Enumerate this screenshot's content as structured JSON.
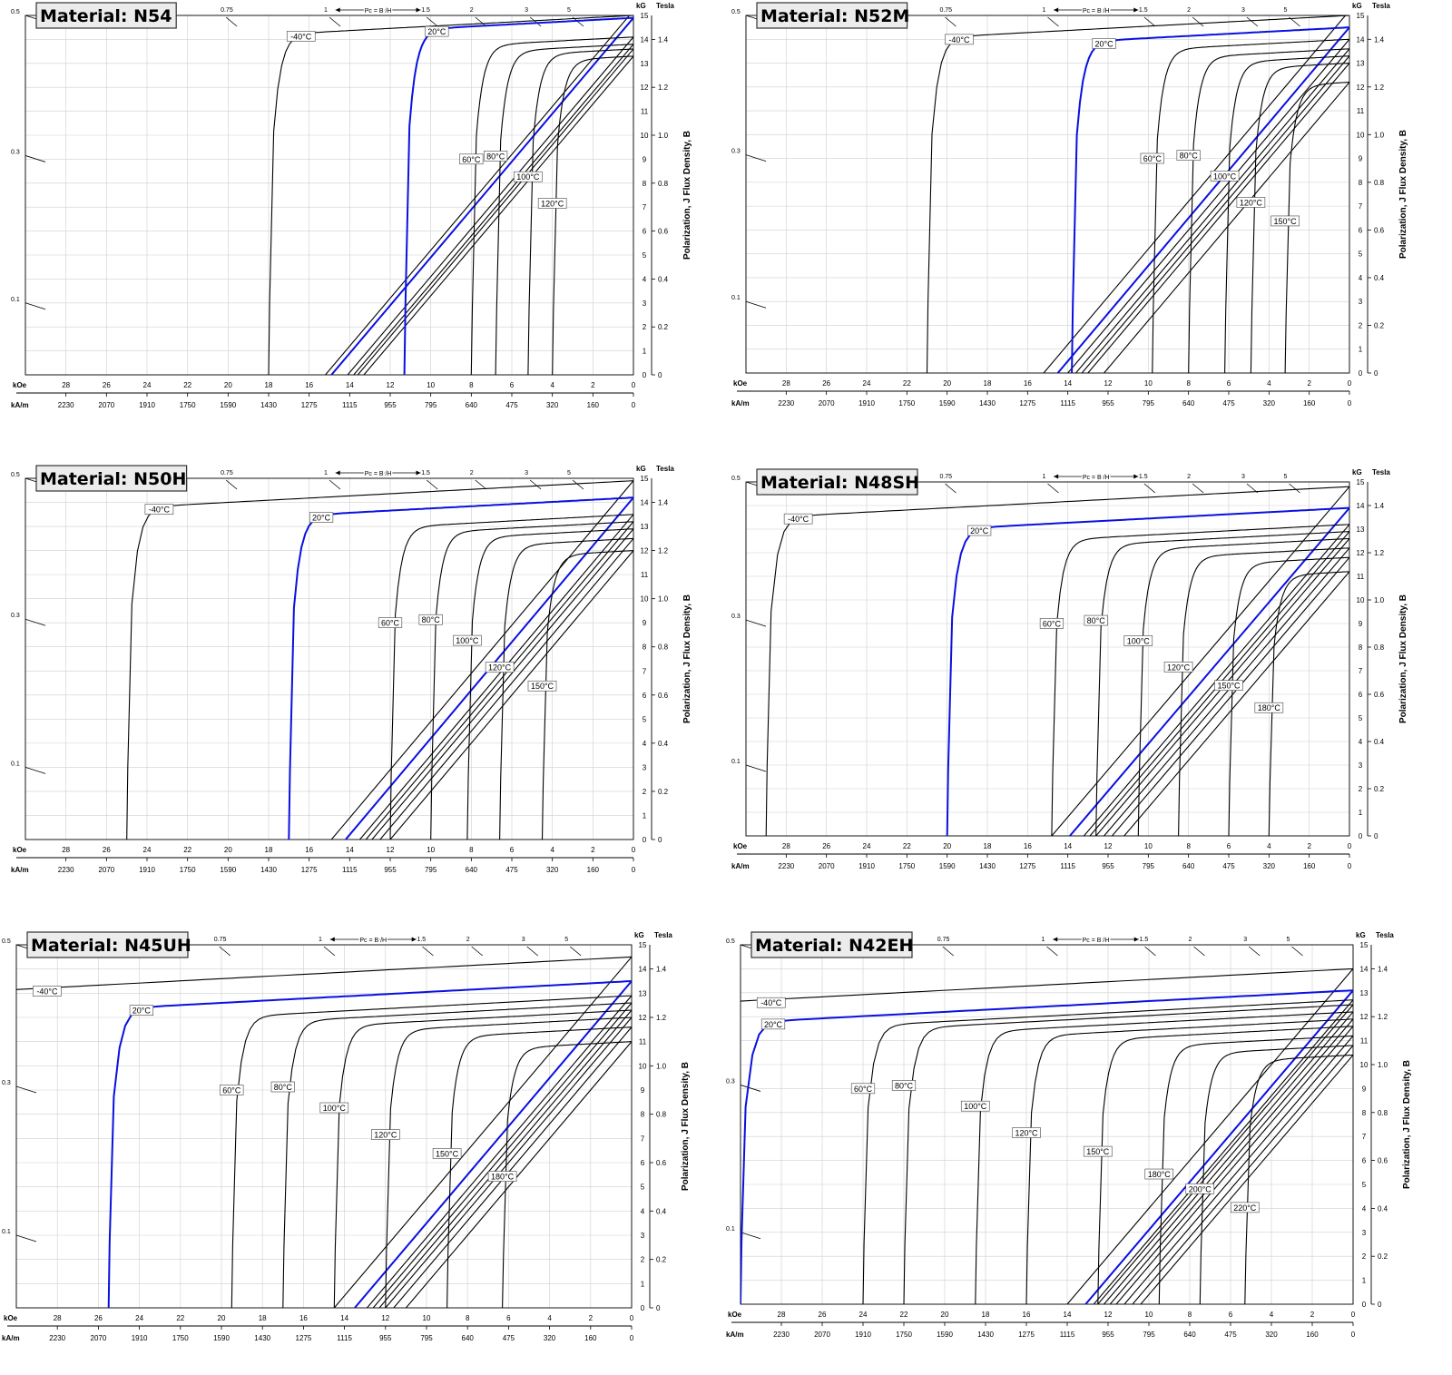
{
  "chart_data": [
    {
      "type": "line",
      "title": "Material: N54",
      "hci": {
        "-40": null,
        "20": 11.3,
        "60": 8,
        "80": 6.8,
        "100": 5.2,
        "120": 4,
        "150": null,
        "180": null
      },
      "curves": [
        {
          "name": "-40°C",
          "jr_kG": 15.0,
          "hci_kOe": 18.0,
          "label": true
        },
        {
          "name": "20°C",
          "jr_kG": 14.9,
          "hci_kOe": 11.3,
          "label": true,
          "highlight": true
        },
        {
          "name": "60°C",
          "jr_kG": 14.1,
          "hci_kOe": 8.0,
          "label": true
        },
        {
          "name": "80°C",
          "jr_kG": 13.8,
          "hci_kOe": 6.8,
          "label": true
        },
        {
          "name": "100°C",
          "jr_kG": 13.6,
          "hci_kOe": 5.2,
          "label": true
        },
        {
          "name": "120°C",
          "jr_kG": 13.3,
          "hci_kOe": 4.0,
          "label": true
        }
      ],
      "b_lines": [
        {
          "name": "-40°C",
          "br_kG": 15.2
        },
        {
          "name": "20°C",
          "br_kG": 14.9,
          "highlight": true
        },
        {
          "name": "60°C",
          "br_kG": 14.1
        },
        {
          "name": "80°C",
          "br_kG": 13.8
        },
        {
          "name": "100°C",
          "br_kG": 13.6
        },
        {
          "name": "120°C",
          "br_kG": 13.3
        }
      ],
      "xlabel_koe": "kOe",
      "xlabel_kam": "kA/m",
      "y_left": "kG",
      "y_right": "Tesla",
      "ylabel": "Polarization,  J    Flux Density,  B",
      "x_ticks_koe": [
        "28",
        "26",
        "24",
        "22",
        "20",
        "18",
        "16",
        "14",
        "12",
        "10",
        "8",
        "6",
        "4",
        "2",
        "0"
      ],
      "x_ticks_kam": [
        "2230",
        "2070",
        "1910",
        "1750",
        "1590",
        "1430",
        "1275",
        "1115",
        "955",
        "795",
        "640",
        "475",
        "320",
        "160",
        "0"
      ],
      "y_ticks_kg": [
        "0",
        "1",
        "2",
        "3",
        "4",
        "5",
        "6",
        "7",
        "8",
        "9",
        "10",
        "11",
        "12",
        "13",
        "14",
        "15"
      ],
      "y_ticks_t": [
        "0",
        "0.2",
        "0.4",
        "0.6",
        "0.8",
        "1.0",
        "1.2",
        "1.4"
      ],
      "pc_ticks": [
        "0.75",
        "1",
        "1.5",
        "2",
        "3",
        "5"
      ],
      "pc_left": [
        "0.5",
        "0.3",
        "0.1"
      ],
      "pc_label": "Pc = B /H",
      "xlim_koe": [
        30,
        0
      ],
      "ylim_kg": [
        0,
        15
      ]
    },
    {
      "type": "line",
      "title": "Material: N52M",
      "curves": [
        {
          "name": "-40°C",
          "jr_kG": 15.0,
          "hci_kOe": 21.0,
          "label": true
        },
        {
          "name": "20°C",
          "jr_kG": 14.5,
          "hci_kOe": 13.8,
          "label": true,
          "highlight": true
        },
        {
          "name": "60°C",
          "jr_kG": 14.0,
          "hci_kOe": 9.8,
          "label": true
        },
        {
          "name": "80°C",
          "jr_kG": 13.6,
          "hci_kOe": 8.0,
          "label": true
        },
        {
          "name": "100°C",
          "jr_kG": 13.3,
          "hci_kOe": 6.2,
          "label": true
        },
        {
          "name": "120°C",
          "jr_kG": 13.0,
          "hci_kOe": 4.9,
          "label": true
        },
        {
          "name": "150°C",
          "jr_kG": 12.2,
          "hci_kOe": 3.2,
          "label": true
        }
      ],
      "b_lines": [
        {
          "name": "-40°C",
          "br_kG": 15.2
        },
        {
          "name": "20°C",
          "br_kG": 14.5,
          "highlight": true
        },
        {
          "name": "60°C",
          "br_kG": 14.0
        },
        {
          "name": "80°C",
          "br_kG": 13.6
        },
        {
          "name": "100°C",
          "br_kG": 13.3
        },
        {
          "name": "120°C",
          "br_kG": 13.0
        },
        {
          "name": "150°C",
          "br_kG": 12.2
        }
      ],
      "xlabel_koe": "kOe",
      "xlabel_kam": "kA/m",
      "y_left": "kG",
      "y_right": "Tesla",
      "ylabel": "Polarization,  J    Flux Density,  B",
      "x_ticks_koe": [
        "28",
        "26",
        "24",
        "22",
        "20",
        "18",
        "16",
        "14",
        "12",
        "10",
        "8",
        "6",
        "4",
        "2",
        "0"
      ],
      "x_ticks_kam": [
        "2230",
        "2070",
        "1910",
        "1750",
        "1590",
        "1430",
        "1275",
        "1115",
        "955",
        "795",
        "640",
        "475",
        "320",
        "160",
        "0"
      ],
      "y_ticks_kg": [
        "0",
        "1",
        "2",
        "3",
        "4",
        "5",
        "6",
        "7",
        "8",
        "9",
        "10",
        "11",
        "12",
        "13",
        "14",
        "15"
      ],
      "y_ticks_t": [
        "0",
        "0.2",
        "0.4",
        "0.6",
        "0.8",
        "1.0",
        "1.2",
        "1.4"
      ],
      "pc_ticks": [
        "0.75",
        "1",
        "1.5",
        "2",
        "3",
        "5"
      ],
      "pc_left": [
        "0.5",
        "0.3",
        "0.1"
      ],
      "pc_label": "Pc = B /H",
      "xlim_koe": [
        30,
        0
      ],
      "ylim_kg": [
        0,
        15
      ]
    },
    {
      "type": "line",
      "title": "Material: N50H",
      "curves": [
        {
          "name": "-40°C",
          "jr_kG": 14.9,
          "hci_kOe": 25.0,
          "label": true
        },
        {
          "name": "20°C",
          "jr_kG": 14.2,
          "hci_kOe": 17.0,
          "label": true,
          "highlight": true
        },
        {
          "name": "60°C",
          "jr_kG": 13.5,
          "hci_kOe": 12.0,
          "label": true
        },
        {
          "name": "80°C",
          "jr_kG": 13.2,
          "hci_kOe": 10.0,
          "label": true
        },
        {
          "name": "100°C",
          "jr_kG": 12.9,
          "hci_kOe": 8.2,
          "label": true
        },
        {
          "name": "120°C",
          "jr_kG": 12.5,
          "hci_kOe": 6.6,
          "label": true
        },
        {
          "name": "150°C",
          "jr_kG": 12.0,
          "hci_kOe": 4.5,
          "label": true
        }
      ],
      "b_lines": [
        {
          "name": "-40°C",
          "br_kG": 14.9
        },
        {
          "name": "20°C",
          "br_kG": 14.2,
          "highlight": true
        },
        {
          "name": "60°C",
          "br_kG": 13.5
        },
        {
          "name": "80°C",
          "br_kG": 13.2
        },
        {
          "name": "100°C",
          "br_kG": 12.9
        },
        {
          "name": "120°C",
          "br_kG": 12.5
        },
        {
          "name": "150°C",
          "br_kG": 12.0
        }
      ],
      "xlabel_koe": "kOe",
      "xlabel_kam": "kA/m",
      "y_left": "kG",
      "y_right": "Tesla",
      "ylabel": "Polarization,  J    Flux Density,  B",
      "x_ticks_koe": [
        "28",
        "26",
        "24",
        "22",
        "20",
        "18",
        "16",
        "14",
        "12",
        "10",
        "8",
        "6",
        "4",
        "2",
        "0"
      ],
      "x_ticks_kam": [
        "2230",
        "2070",
        "1910",
        "1750",
        "1590",
        "1430",
        "1275",
        "1115",
        "955",
        "795",
        "640",
        "475",
        "320",
        "160",
        "0"
      ],
      "y_ticks_kg": [
        "0",
        "1",
        "2",
        "3",
        "4",
        "5",
        "6",
        "7",
        "8",
        "9",
        "10",
        "11",
        "12",
        "13",
        "14",
        "15"
      ],
      "y_ticks_t": [
        "0",
        "0.2",
        "0.4",
        "0.6",
        "0.8",
        "1.0",
        "1.2",
        "1.4"
      ],
      "pc_ticks": [
        "0.75",
        "1",
        "1.5",
        "2",
        "3",
        "5"
      ],
      "pc_left": [
        "0.5",
        "0.3",
        "0.1"
      ],
      "pc_label": "Pc = B /H",
      "xlim_koe": [
        30,
        0
      ],
      "ylim_kg": [
        0,
        15
      ]
    },
    {
      "type": "line",
      "title": "Material: N48SH",
      "curves": [
        {
          "name": "-40°C",
          "jr_kG": 14.8,
          "hci_kOe": 29.0,
          "label": true
        },
        {
          "name": "20°C",
          "jr_kG": 13.9,
          "hci_kOe": 20.0,
          "label": true,
          "highlight": true
        },
        {
          "name": "60°C",
          "jr_kG": 13.2,
          "hci_kOe": 14.8,
          "label": true
        },
        {
          "name": "80°C",
          "jr_kG": 12.9,
          "hci_kOe": 12.6,
          "label": true
        },
        {
          "name": "100°C",
          "jr_kG": 12.6,
          "hci_kOe": 10.5,
          "label": true
        },
        {
          "name": "120°C",
          "jr_kG": 12.2,
          "hci_kOe": 8.5,
          "label": true
        },
        {
          "name": "150°C",
          "jr_kG": 11.8,
          "hci_kOe": 6.0,
          "label": true
        },
        {
          "name": "180°C",
          "jr_kG": 11.2,
          "hci_kOe": 4.0,
          "label": true
        }
      ],
      "b_lines": [
        {
          "name": "-40°C",
          "br_kG": 14.8
        },
        {
          "name": "20°C",
          "br_kG": 13.9,
          "highlight": true
        },
        {
          "name": "60°C",
          "br_kG": 13.2
        },
        {
          "name": "80°C",
          "br_kG": 12.9
        },
        {
          "name": "100°C",
          "br_kG": 12.6
        },
        {
          "name": "120°C",
          "br_kG": 12.2
        },
        {
          "name": "150°C",
          "br_kG": 11.8
        },
        {
          "name": "180°C",
          "br_kG": 11.2
        }
      ],
      "xlabel_koe": "kOe",
      "xlabel_kam": "kA/m",
      "y_left": "kG",
      "y_right": "Tesla",
      "ylabel": "Polarization,  J    Flux Density,  B",
      "x_ticks_koe": [
        "28",
        "26",
        "24",
        "22",
        "20",
        "18",
        "16",
        "14",
        "12",
        "10",
        "8",
        "6",
        "4",
        "2",
        "0"
      ],
      "x_ticks_kam": [
        "2230",
        "2070",
        "1910",
        "1750",
        "1590",
        "1430",
        "1275",
        "1115",
        "955",
        "795",
        "640",
        "475",
        "320",
        "160",
        "0"
      ],
      "y_ticks_kg": [
        "0",
        "1",
        "2",
        "3",
        "4",
        "5",
        "6",
        "7",
        "8",
        "9",
        "10",
        "11",
        "12",
        "13",
        "14",
        "15"
      ],
      "y_ticks_t": [
        "0",
        "0.2",
        "0.4",
        "0.6",
        "0.8",
        "1.0",
        "1.2",
        "1.4"
      ],
      "pc_ticks": [
        "0.75",
        "1",
        "1.5",
        "2",
        "3",
        "5"
      ],
      "pc_left": [
        "0.5",
        "0.3",
        "0.1"
      ],
      "pc_label": "Pc = B /H",
      "xlim_koe": [
        30,
        0
      ],
      "ylim_kg": [
        0,
        15
      ]
    },
    {
      "type": "line",
      "title": "Material: N45UH",
      "curves": [
        {
          "name": "-40°C",
          "jr_kG": 14.5,
          "hci_kOe": 40.0,
          "label": true
        },
        {
          "name": "20°C",
          "jr_kG": 13.5,
          "hci_kOe": 25.5,
          "label": true,
          "highlight": true
        },
        {
          "name": "60°C",
          "jr_kG": 12.9,
          "hci_kOe": 19.5,
          "label": true
        },
        {
          "name": "80°C",
          "jr_kG": 12.6,
          "hci_kOe": 17.0,
          "label": true
        },
        {
          "name": "100°C",
          "jr_kG": 12.3,
          "hci_kOe": 14.5,
          "label": true
        },
        {
          "name": "120°C",
          "jr_kG": 12.0,
          "hci_kOe": 12.0,
          "label": true
        },
        {
          "name": "150°C",
          "jr_kG": 11.6,
          "hci_kOe": 9.0,
          "label": true
        },
        {
          "name": "180°C",
          "jr_kG": 11.0,
          "hci_kOe": 6.3,
          "label": true
        }
      ],
      "b_lines": [
        {
          "name": "-40°C",
          "br_kG": 14.5
        },
        {
          "name": "20°C",
          "br_kG": 13.5,
          "highlight": true
        },
        {
          "name": "60°C",
          "br_kG": 12.9
        },
        {
          "name": "80°C",
          "br_kG": 12.6
        },
        {
          "name": "100°C",
          "br_kG": 12.3
        },
        {
          "name": "120°C",
          "br_kG": 12.0
        },
        {
          "name": "150°C",
          "br_kG": 11.6
        },
        {
          "name": "180°C",
          "br_kG": 11.0
        }
      ],
      "xlabel_koe": "kOe",
      "xlabel_kam": "kA/m",
      "y_left": "kG",
      "y_right": "Tesla",
      "ylabel": "Polarization,  J    Flux Density,  B",
      "x_ticks_koe": [
        "28",
        "26",
        "24",
        "22",
        "20",
        "18",
        "16",
        "14",
        "12",
        "10",
        "8",
        "6",
        "4",
        "2",
        "0"
      ],
      "x_ticks_kam": [
        "2230",
        "2070",
        "1910",
        "1750",
        "1590",
        "1430",
        "1275",
        "1115",
        "955",
        "795",
        "640",
        "475",
        "320",
        "160",
        "0"
      ],
      "y_ticks_kg": [
        "0",
        "1",
        "2",
        "3",
        "4",
        "5",
        "6",
        "7",
        "8",
        "9",
        "10",
        "11",
        "12",
        "13",
        "14",
        "15"
      ],
      "y_ticks_t": [
        "0",
        "0.2",
        "0.4",
        "0.6",
        "0.8",
        "1.0",
        "1.2",
        "1.4"
      ],
      "pc_ticks": [
        "0.75",
        "1",
        "1.5",
        "2",
        "3",
        "5"
      ],
      "pc_left": [
        "0.5",
        "0.3",
        "0.1"
      ],
      "pc_label": "Pc = B /H",
      "xlim_koe": [
        30,
        0
      ],
      "ylim_kg": [
        0,
        15
      ]
    },
    {
      "type": "line",
      "title": "Material: N42EH",
      "curves": [
        {
          "name": "-40°C",
          "jr_kG": 14.0,
          "hci_kOe": 40.0,
          "label": true
        },
        {
          "name": "20°C",
          "jr_kG": 13.1,
          "hci_kOe": 30.0,
          "label": true,
          "highlight": true
        },
        {
          "name": "60°C",
          "jr_kG": 12.7,
          "hci_kOe": 24.0,
          "label": true
        },
        {
          "name": "80°C",
          "jr_kG": 12.5,
          "hci_kOe": 22.0,
          "label": true
        },
        {
          "name": "100°C",
          "jr_kG": 12.2,
          "hci_kOe": 18.5,
          "label": true
        },
        {
          "name": "120°C",
          "jr_kG": 11.9,
          "hci_kOe": 16.0,
          "label": true
        },
        {
          "name": "150°C",
          "jr_kG": 11.6,
          "hci_kOe": 12.5,
          "label": true
        },
        {
          "name": "180°C",
          "jr_kG": 11.2,
          "hci_kOe": 9.5,
          "label": true
        },
        {
          "name": "200°C",
          "jr_kG": 10.8,
          "hci_kOe": 7.5,
          "label": true
        },
        {
          "name": "220°C",
          "jr_kG": 10.4,
          "hci_kOe": 5.3,
          "label": true
        }
      ],
      "b_lines": [
        {
          "name": "-40°C",
          "br_kG": 14.0
        },
        {
          "name": "20°C",
          "br_kG": 13.1,
          "highlight": true
        },
        {
          "name": "60°C",
          "br_kG": 12.7
        },
        {
          "name": "80°C",
          "br_kG": 12.5
        },
        {
          "name": "100°C",
          "br_kG": 12.2
        },
        {
          "name": "120°C",
          "br_kG": 11.9
        },
        {
          "name": "150°C",
          "br_kG": 11.6
        },
        {
          "name": "180°C",
          "br_kG": 11.2
        },
        {
          "name": "200°C",
          "br_kG": 10.8
        },
        {
          "name": "220°C",
          "br_kG": 10.4
        }
      ],
      "xlabel_koe": "kOe",
      "xlabel_kam": "kA/m",
      "y_left": "kG",
      "y_right": "Tesla",
      "ylabel": "Polarization,  J    Flux Density,  B",
      "x_ticks_koe": [
        "28",
        "26",
        "24",
        "22",
        "20",
        "18",
        "16",
        "14",
        "12",
        "10",
        "8",
        "6",
        "4",
        "2",
        "0"
      ],
      "x_ticks_kam": [
        "2230",
        "2070",
        "1910",
        "1750",
        "1590",
        "1430",
        "1275",
        "1115",
        "955",
        "795",
        "640",
        "475",
        "320",
        "160",
        "0"
      ],
      "y_ticks_kg": [
        "0",
        "1",
        "2",
        "3",
        "4",
        "5",
        "6",
        "7",
        "8",
        "9",
        "10",
        "11",
        "12",
        "13",
        "14",
        "15"
      ],
      "y_ticks_t": [
        "0",
        "0.2",
        "0.4",
        "0.6",
        "0.8",
        "1.0",
        "1.2",
        "1.4"
      ],
      "pc_ticks": [
        "0.75",
        "1",
        "1.5",
        "2",
        "3",
        "5"
      ],
      "pc_left": [
        "0.5",
        "0.3",
        "0.1"
      ],
      "pc_label": "Pc = B /H",
      "xlim_koe": [
        30,
        0
      ],
      "ylim_kg": [
        0,
        15
      ]
    }
  ],
  "colors": {
    "highlight": "#0a10e0",
    "curve": "#000000",
    "grid": "#cfcfcf",
    "title_bg": "#ececec"
  }
}
